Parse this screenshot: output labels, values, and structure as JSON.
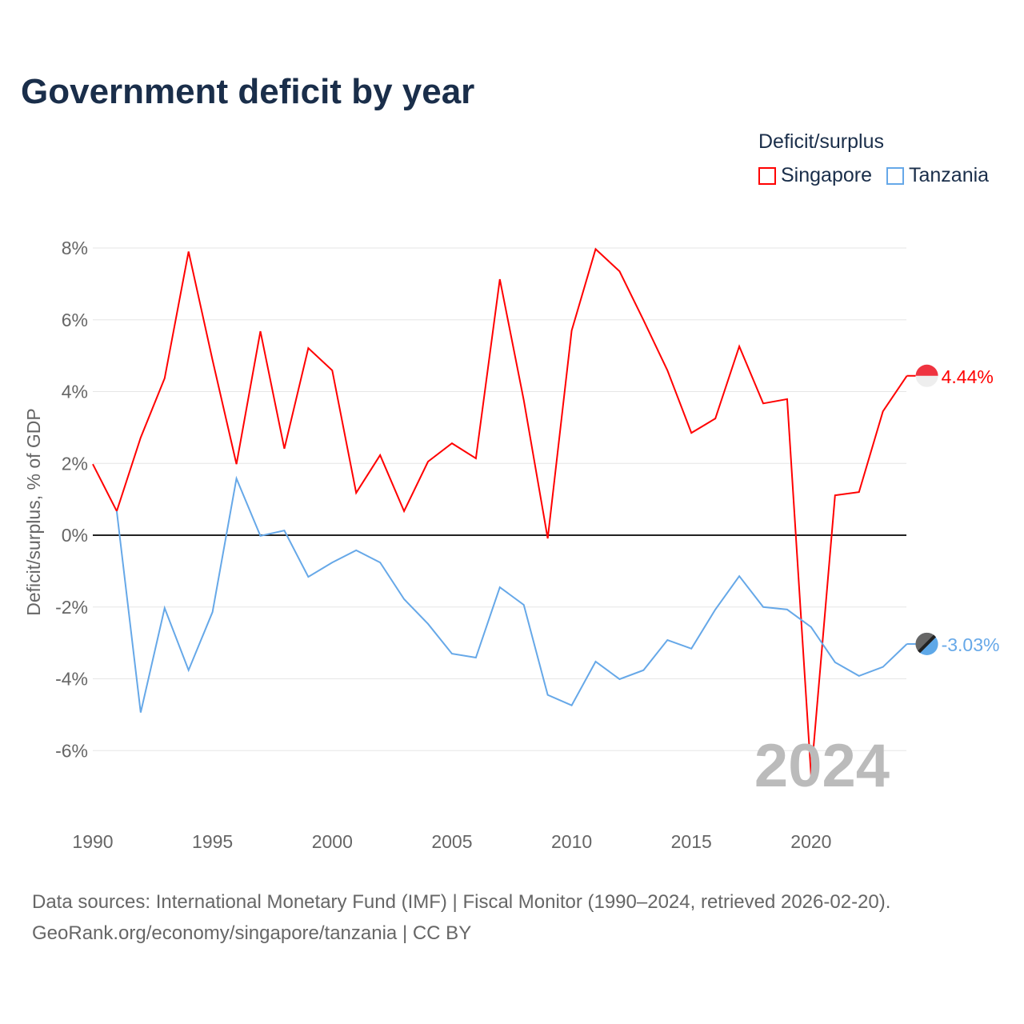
{
  "title": "Government deficit by year",
  "legend_title": "Deficit/surplus",
  "source_line1": "Data sources: International Monetary Fund (IMF) | Fiscal Monitor (1990–2024, retrieved 2026-02-20).",
  "source_line2": "GeoRank.org/economy/singapore/tanzania | CC BY",
  "year_watermark": "2024",
  "chart_data": {
    "type": "line",
    "title": "Government deficit by year",
    "xlabel": "",
    "ylabel": "Deficit/surplus, % of GDP",
    "xlim": [
      1990,
      2024
    ],
    "ylim": [
      -7.5,
      8.5
    ],
    "yticks": [
      8,
      6,
      4,
      2,
      0,
      -2,
      -4,
      -6
    ],
    "ytick_labels": [
      "8%",
      "6%",
      "4%",
      "2%",
      "0%",
      "-2%",
      "-4%",
      "-6%"
    ],
    "xticks": [
      1990,
      1995,
      2000,
      2005,
      2010,
      2015,
      2020
    ],
    "xtick_labels": [
      "1990",
      "1995",
      "2000",
      "2005",
      "2010",
      "2015",
      "2020"
    ],
    "grid": true,
    "legend_position": "top-right",
    "series": [
      {
        "name": "Singapore",
        "color": "#ff0000",
        "end_label": "4.44%",
        "start_year": 1990,
        "values": [
          1.98,
          0.67,
          2.72,
          4.37,
          7.9,
          4.88,
          1.98,
          5.68,
          2.41,
          5.21,
          4.59,
          1.18,
          2.23,
          0.67,
          2.05,
          2.56,
          2.14,
          7.13,
          3.76,
          -0.09,
          5.7,
          7.97,
          7.35,
          5.99,
          4.59,
          2.85,
          3.25,
          5.26,
          3.67,
          3.79,
          -6.7,
          1.11,
          1.2,
          3.45,
          4.44
        ]
      },
      {
        "name": "Tanzania",
        "color": "#66a8e8",
        "end_label": "-3.03%",
        "start_year": 1991,
        "values": [
          0.67,
          -4.94,
          -2.03,
          -3.76,
          -2.14,
          1.58,
          -0.02,
          0.13,
          -1.16,
          -0.76,
          -0.42,
          -0.76,
          -1.78,
          -2.47,
          -3.3,
          -3.41,
          -1.45,
          -1.94,
          -4.45,
          -4.74,
          -3.52,
          -4.01,
          -3.76,
          -2.92,
          -3.16,
          -2.07,
          -1.14,
          -2.0,
          -2.07,
          -2.56,
          -3.54,
          -3.92,
          -3.67,
          -3.03
        ]
      }
    ]
  }
}
